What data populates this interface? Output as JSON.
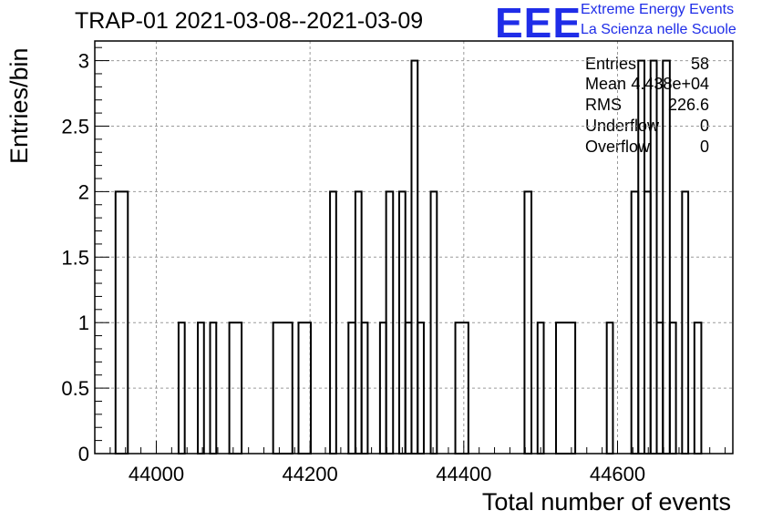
{
  "title": "TRAP-01 2021-03-08--2021-03-09",
  "logo": {
    "mark": "EEE",
    "line1": "Extreme Energy Events",
    "line2": "La Scienza nelle Scuole"
  },
  "stats": [
    {
      "label": "Entries",
      "value": "58"
    },
    {
      "label": "Mean",
      "value": "4.438e+04"
    },
    {
      "label": "RMS",
      "value": "226.6"
    },
    {
      "label": "Underflow",
      "value": "0"
    },
    {
      "label": "Overflow",
      "value": "0"
    }
  ],
  "colors": {
    "logo": "#1f2de8",
    "grid": "#9a9a9a",
    "line": "#000000"
  },
  "chart_data": {
    "type": "bar",
    "style": "step-histogram",
    "title": "TRAP-01 2021-03-08--2021-03-09",
    "xlabel": "Total number of events",
    "ylabel": "Entries/bin",
    "xlim": [
      43920,
      44750
    ],
    "ylim": [
      0,
      3.15
    ],
    "bin_width": 8.2,
    "grid": true,
    "xticks": [
      {
        "value": 44000,
        "label": "44000"
      },
      {
        "value": 44200,
        "label": "44200"
      },
      {
        "value": 44400,
        "label": "44400"
      },
      {
        "value": 44600,
        "label": "44600"
      }
    ],
    "yticks": [
      {
        "value": 0,
        "label": "0"
      },
      {
        "value": 0.5,
        "label": "0.5"
      },
      {
        "value": 1,
        "label": "1"
      },
      {
        "value": 1.5,
        "label": "1.5"
      },
      {
        "value": 2,
        "label": "2"
      },
      {
        "value": 2.5,
        "label": "2.5"
      },
      {
        "value": 3,
        "label": "3"
      }
    ],
    "bins": [
      {
        "x0": 43947,
        "x1": 43963,
        "y": 2
      },
      {
        "x0": 44029,
        "x1": 44037,
        "y": 1
      },
      {
        "x0": 44054,
        "x1": 44062,
        "y": 1
      },
      {
        "x0": 44070,
        "x1": 44078,
        "y": 1
      },
      {
        "x0": 44095,
        "x1": 44111,
        "y": 1
      },
      {
        "x0": 44152,
        "x1": 44177,
        "y": 1
      },
      {
        "x0": 44185,
        "x1": 44201,
        "y": 1
      },
      {
        "x0": 44226,
        "x1": 44234,
        "y": 2
      },
      {
        "x0": 44250,
        "x1": 44259,
        "y": 1
      },
      {
        "x0": 44259,
        "x1": 44267,
        "y": 2
      },
      {
        "x0": 44267,
        "x1": 44275,
        "y": 1
      },
      {
        "x0": 44291,
        "x1": 44299,
        "y": 1
      },
      {
        "x0": 44299,
        "x1": 44308,
        "y": 2
      },
      {
        "x0": 44316,
        "x1": 44324,
        "y": 2
      },
      {
        "x0": 44324,
        "x1": 44332,
        "y": 1
      },
      {
        "x0": 44332,
        "x1": 44340,
        "y": 3
      },
      {
        "x0": 44340,
        "x1": 44348,
        "y": 1
      },
      {
        "x0": 44357,
        "x1": 44365,
        "y": 2
      },
      {
        "x0": 44389,
        "x1": 44406,
        "y": 1
      },
      {
        "x0": 44479,
        "x1": 44488,
        "y": 2
      },
      {
        "x0": 44496,
        "x1": 44504,
        "y": 1
      },
      {
        "x0": 44520,
        "x1": 44545,
        "y": 1
      },
      {
        "x0": 44586,
        "x1": 44594,
        "y": 1
      },
      {
        "x0": 44618,
        "x1": 44627,
        "y": 2
      },
      {
        "x0": 44627,
        "x1": 44635,
        "y": 3
      },
      {
        "x0": 44635,
        "x1": 44643,
        "y": 2
      },
      {
        "x0": 44643,
        "x1": 44651,
        "y": 3
      },
      {
        "x0": 44651,
        "x1": 44659,
        "y": 1
      },
      {
        "x0": 44659,
        "x1": 44668,
        "y": 3
      },
      {
        "x0": 44668,
        "x1": 44676,
        "y": 1
      },
      {
        "x0": 44684,
        "x1": 44692,
        "y": 2
      },
      {
        "x0": 44700,
        "x1": 44709,
        "y": 1
      }
    ]
  }
}
